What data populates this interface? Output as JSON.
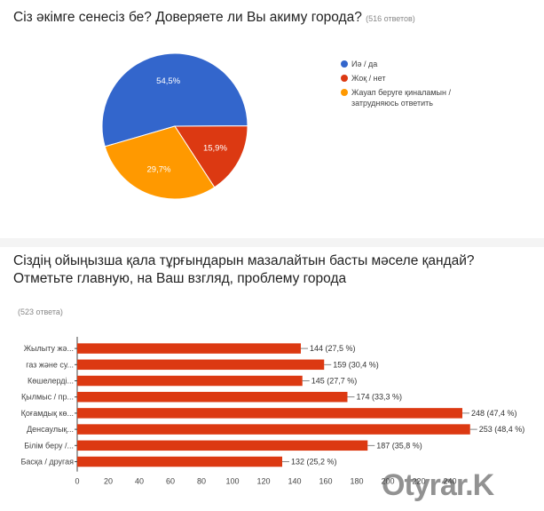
{
  "watermark": "Otyrar.K",
  "chart_data": [
    {
      "type": "pie",
      "title": "Сіз әкімге сенесіз бе? Доверяете ли Вы акиму города?",
      "response_count": "(516 ответов)",
      "slices": [
        {
          "label": "Иә / да",
          "value": 54.5,
          "display": "54,5%",
          "color": "#3366cc"
        },
        {
          "label": "Жоқ / нет",
          "value": 15.9,
          "display": "15,9%",
          "color": "#dc3912"
        },
        {
          "label": "Жауап беруге қиналамын / затрудняюсь ответить",
          "value": 29.7,
          "display": "29,7%",
          "color": "#ff9900"
        }
      ],
      "legend_position": "right"
    },
    {
      "type": "bar",
      "orientation": "horizontal",
      "title": "Сіздің ойыңызша қала тұрғындарын мазалайтын басты мәселе қандай? Отметьте главную, на Ваш взгляд, проблему города",
      "response_count": "(523 ответа)",
      "color": "#dc3912",
      "categories": [
        "Жылыту жә...",
        "газ және су...",
        "Көшелерді...",
        "Қылмыс / пр...",
        "Қоғамдық кө...",
        "Денсаулық...",
        "Білім беру /...",
        "Басқа / другая"
      ],
      "values": [
        144,
        159,
        145,
        174,
        248,
        253,
        187,
        132
      ],
      "value_labels": [
        "144 (27,5 %)",
        "159 (30,4 %)",
        "145 (27,7 %)",
        "174 (33,3 %)",
        "248 (47,4 %)",
        "253 (48,4 %)",
        "187 (35,8 %)",
        "132 (25,2 %)"
      ],
      "xlim": [
        0,
        260
      ],
      "xticks": [
        0,
        20,
        40,
        60,
        80,
        100,
        120,
        140,
        160,
        180,
        200,
        220,
        240
      ],
      "grid": false
    }
  ]
}
